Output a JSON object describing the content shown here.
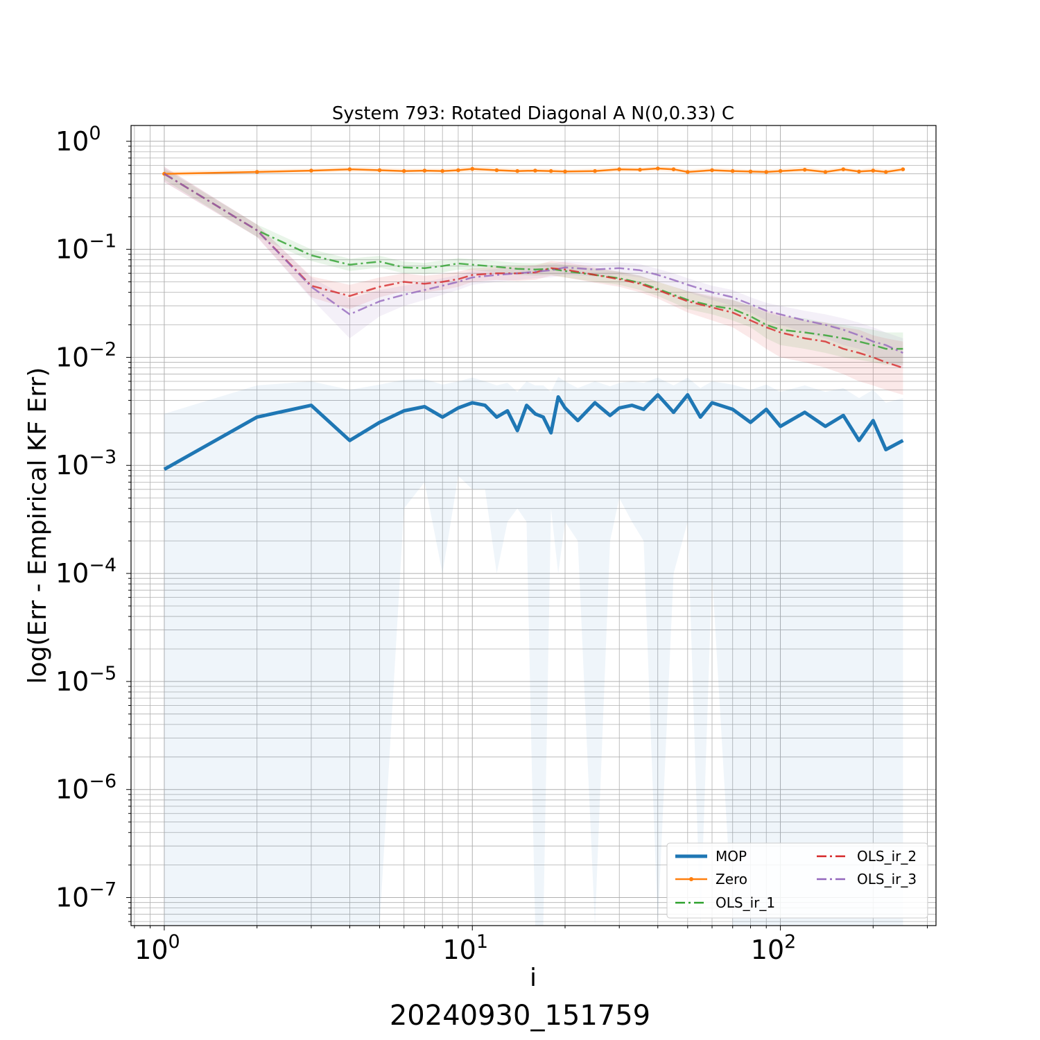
{
  "chart_data": {
    "type": "line",
    "title": "System 793: Rotated Diagonal A N(0,0.33) C",
    "xlabel": "i",
    "ylabel": "log(Err - Empirical KF Err)",
    "footer": "20240930_151759",
    "xscale": "log",
    "yscale": "log",
    "xlim": [
      0.78,
      320
    ],
    "ylim": [
      5.5e-08,
      1.4
    ],
    "grid": true,
    "legend_placement": "lower-right",
    "x_ticks": [
      {
        "base": "10",
        "exp": "0",
        "value": 1
      },
      {
        "base": "10",
        "exp": "1",
        "value": 10
      },
      {
        "base": "10",
        "exp": "2",
        "value": 100
      }
    ],
    "y_ticks": [
      {
        "base": "10",
        "exp": "0",
        "value": 1
      },
      {
        "base": "10",
        "exp": "−1",
        "value": 0.1
      },
      {
        "base": "10",
        "exp": "−2",
        "value": 0.01
      },
      {
        "base": "10",
        "exp": "−3",
        "value": 0.001
      },
      {
        "base": "10",
        "exp": "−4",
        "value": 0.0001
      },
      {
        "base": "10",
        "exp": "−5",
        "value": 1e-05
      },
      {
        "base": "10",
        "exp": "−6",
        "value": 1e-06
      },
      {
        "base": "10",
        "exp": "−7",
        "value": 1e-07
      }
    ],
    "series": [
      {
        "name": "MOP",
        "color": "#1f77b4",
        "style": "solid-thick",
        "x": [
          1,
          2,
          3,
          4,
          5,
          6,
          7,
          8,
          9,
          10,
          11,
          12,
          13,
          14,
          15,
          16,
          17,
          18,
          19,
          20,
          22,
          25,
          28,
          30,
          33,
          36,
          40,
          45,
          50,
          55,
          60,
          70,
          80,
          90,
          100,
          120,
          140,
          160,
          180,
          200,
          220,
          250
        ],
        "y": [
          0.00092,
          0.0028,
          0.0036,
          0.0017,
          0.0025,
          0.0032,
          0.0035,
          0.0028,
          0.0034,
          0.0038,
          0.0036,
          0.0028,
          0.0032,
          0.0021,
          0.0036,
          0.003,
          0.0028,
          0.002,
          0.0043,
          0.0034,
          0.0026,
          0.0038,
          0.0029,
          0.0034,
          0.0036,
          0.0033,
          0.0045,
          0.0031,
          0.0045,
          0.0028,
          0.0038,
          0.0033,
          0.0025,
          0.0033,
          0.0023,
          0.0031,
          0.0023,
          0.0029,
          0.0017,
          0.0026,
          0.0014,
          0.0017
        ],
        "band_lower": [
          1e-08,
          1e-08,
          1e-08,
          1e-08,
          1e-08,
          0.0004,
          0.0007,
          0.0001,
          0.0008,
          0.0006,
          0.0006,
          0.0001,
          0.0003,
          0.0004,
          0.0003,
          1e-08,
          1e-08,
          0.0004,
          0.0001,
          0.0003,
          0.0002,
          1e-08,
          0.0002,
          0.0005,
          0.0003,
          0.0002,
          1e-08,
          0.0001,
          0.0003,
          1e-08,
          0.0001,
          1e-08,
          1e-08,
          1e-08,
          1e-08,
          1e-08,
          1e-08,
          1e-08,
          1e-08,
          1e-08,
          1e-08,
          1e-08
        ],
        "band_upper": [
          0.003,
          0.0055,
          0.006,
          0.005,
          0.0056,
          0.0062,
          0.0063,
          0.0056,
          0.006,
          0.0065,
          0.006,
          0.0055,
          0.0058,
          0.0048,
          0.006,
          0.0055,
          0.0055,
          0.0048,
          0.0066,
          0.006,
          0.0052,
          0.006,
          0.0054,
          0.0058,
          0.006,
          0.0058,
          0.0065,
          0.0055,
          0.0065,
          0.0052,
          0.006,
          0.0056,
          0.005,
          0.0056,
          0.0048,
          0.0055,
          0.0048,
          0.0052,
          0.0042,
          0.005,
          0.0038,
          0.0042
        ]
      },
      {
        "name": "Zero",
        "color": "#ff7f0e",
        "style": "solid-markers",
        "x": [
          1,
          2,
          3,
          4,
          5,
          6,
          7,
          8,
          9,
          10,
          12,
          14,
          16,
          18,
          20,
          25,
          30,
          35,
          40,
          45,
          50,
          60,
          70,
          80,
          90,
          100,
          120,
          140,
          160,
          180,
          200,
          220,
          250
        ],
        "y": [
          0.5,
          0.52,
          0.535,
          0.55,
          0.54,
          0.53,
          0.535,
          0.53,
          0.54,
          0.555,
          0.54,
          0.53,
          0.535,
          0.53,
          0.525,
          0.53,
          0.55,
          0.545,
          0.56,
          0.55,
          0.52,
          0.54,
          0.53,
          0.525,
          0.52,
          0.53,
          0.545,
          0.52,
          0.55,
          0.525,
          0.535,
          0.52,
          0.55
        ],
        "band_lower": [
          0.47,
          0.5,
          0.51,
          0.52,
          0.51,
          0.5,
          0.51,
          0.5,
          0.51,
          0.52,
          0.51,
          0.5,
          0.51,
          0.5,
          0.5,
          0.5,
          0.52,
          0.52,
          0.53,
          0.52,
          0.49,
          0.51,
          0.5,
          0.5,
          0.49,
          0.5,
          0.51,
          0.49,
          0.52,
          0.5,
          0.5,
          0.49,
          0.52
        ],
        "band_upper": [
          0.53,
          0.55,
          0.56,
          0.58,
          0.57,
          0.56,
          0.56,
          0.56,
          0.57,
          0.59,
          0.57,
          0.56,
          0.56,
          0.56,
          0.55,
          0.56,
          0.58,
          0.57,
          0.59,
          0.58,
          0.55,
          0.57,
          0.56,
          0.55,
          0.55,
          0.56,
          0.58,
          0.55,
          0.58,
          0.55,
          0.57,
          0.55,
          0.58
        ]
      },
      {
        "name": "OLS_ir_1",
        "color": "#2ca02c",
        "style": "dashdot",
        "x": [
          1,
          2,
          3,
          4,
          5,
          6,
          7,
          8,
          9,
          10,
          12,
          14,
          16,
          18,
          20,
          25,
          30,
          35,
          40,
          45,
          50,
          60,
          70,
          80,
          90,
          100,
          120,
          140,
          160,
          180,
          200,
          220,
          250
        ],
        "y": [
          0.5,
          0.15,
          0.088,
          0.072,
          0.077,
          0.068,
          0.067,
          0.07,
          0.074,
          0.072,
          0.069,
          0.066,
          0.065,
          0.066,
          0.063,
          0.058,
          0.054,
          0.049,
          0.043,
          0.038,
          0.034,
          0.03,
          0.028,
          0.024,
          0.02,
          0.018,
          0.017,
          0.016,
          0.015,
          0.014,
          0.013,
          0.012,
          0.012
        ],
        "band_lower": [
          0.44,
          0.13,
          0.078,
          0.063,
          0.068,
          0.06,
          0.059,
          0.061,
          0.065,
          0.064,
          0.061,
          0.058,
          0.057,
          0.058,
          0.055,
          0.05,
          0.047,
          0.042,
          0.037,
          0.032,
          0.028,
          0.025,
          0.022,
          0.019,
          0.015,
          0.013,
          0.012,
          0.011,
          0.01,
          0.0095,
          0.009,
          0.0085,
          0.0085
        ],
        "band_upper": [
          0.56,
          0.17,
          0.1,
          0.082,
          0.087,
          0.077,
          0.075,
          0.079,
          0.083,
          0.081,
          0.078,
          0.075,
          0.074,
          0.075,
          0.072,
          0.066,
          0.062,
          0.057,
          0.05,
          0.045,
          0.041,
          0.036,
          0.034,
          0.03,
          0.026,
          0.024,
          0.023,
          0.021,
          0.02,
          0.019,
          0.018,
          0.017,
          0.017
        ]
      },
      {
        "name": "OLS_ir_2",
        "color": "#d62728",
        "style": "dashdot",
        "x": [
          1,
          2,
          3,
          4,
          5,
          6,
          7,
          8,
          9,
          10,
          12,
          14,
          16,
          18,
          20,
          25,
          30,
          35,
          40,
          45,
          50,
          60,
          70,
          80,
          90,
          100,
          120,
          140,
          160,
          180,
          200,
          220,
          250
        ],
        "y": [
          0.5,
          0.15,
          0.046,
          0.037,
          0.045,
          0.05,
          0.048,
          0.05,
          0.053,
          0.058,
          0.06,
          0.06,
          0.061,
          0.067,
          0.065,
          0.058,
          0.053,
          0.048,
          0.042,
          0.037,
          0.033,
          0.029,
          0.026,
          0.022,
          0.019,
          0.017,
          0.015,
          0.014,
          0.012,
          0.011,
          0.01,
          0.009,
          0.008
        ],
        "band_lower": [
          0.42,
          0.13,
          0.036,
          0.028,
          0.036,
          0.041,
          0.04,
          0.042,
          0.045,
          0.05,
          0.052,
          0.051,
          0.052,
          0.057,
          0.055,
          0.049,
          0.045,
          0.04,
          0.035,
          0.03,
          0.026,
          0.022,
          0.019,
          0.015,
          0.012,
          0.01,
          0.009,
          0.008,
          0.007,
          0.006,
          0.0055,
          0.005,
          0.0045
        ],
        "band_upper": [
          0.58,
          0.17,
          0.056,
          0.047,
          0.055,
          0.06,
          0.057,
          0.059,
          0.062,
          0.067,
          0.069,
          0.07,
          0.071,
          0.078,
          0.076,
          0.068,
          0.062,
          0.057,
          0.05,
          0.045,
          0.041,
          0.037,
          0.034,
          0.03,
          0.027,
          0.025,
          0.022,
          0.021,
          0.019,
          0.018,
          0.016,
          0.015,
          0.014
        ]
      },
      {
        "name": "OLS_ir_3",
        "color": "#9467bd",
        "style": "dashdot",
        "x": [
          1,
          2,
          3,
          4,
          5,
          6,
          7,
          8,
          9,
          10,
          12,
          14,
          16,
          18,
          20,
          25,
          30,
          35,
          40,
          45,
          50,
          60,
          70,
          80,
          90,
          100,
          120,
          140,
          160,
          180,
          200,
          220,
          250
        ],
        "y": [
          0.5,
          0.15,
          0.045,
          0.025,
          0.033,
          0.038,
          0.042,
          0.046,
          0.05,
          0.055,
          0.058,
          0.06,
          0.062,
          0.064,
          0.068,
          0.065,
          0.067,
          0.064,
          0.058,
          0.052,
          0.047,
          0.04,
          0.036,
          0.031,
          0.027,
          0.025,
          0.022,
          0.02,
          0.018,
          0.016,
          0.014,
          0.013,
          0.011
        ],
        "band_lower": [
          0.42,
          0.13,
          0.035,
          0.015,
          0.024,
          0.03,
          0.034,
          0.038,
          0.042,
          0.047,
          0.05,
          0.052,
          0.054,
          0.055,
          0.058,
          0.056,
          0.058,
          0.055,
          0.05,
          0.045,
          0.04,
          0.034,
          0.03,
          0.026,
          0.022,
          0.02,
          0.017,
          0.015,
          0.013,
          0.012,
          0.01,
          0.009,
          0.008
        ],
        "band_upper": [
          0.58,
          0.17,
          0.055,
          0.035,
          0.042,
          0.046,
          0.05,
          0.054,
          0.058,
          0.063,
          0.066,
          0.068,
          0.07,
          0.073,
          0.078,
          0.074,
          0.076,
          0.073,
          0.066,
          0.06,
          0.054,
          0.046,
          0.042,
          0.036,
          0.032,
          0.03,
          0.027,
          0.025,
          0.023,
          0.021,
          0.019,
          0.017,
          0.015
        ]
      }
    ]
  }
}
